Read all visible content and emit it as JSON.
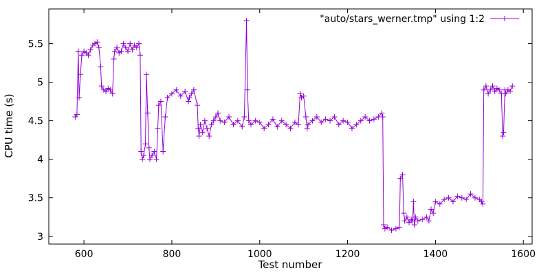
{
  "chart_data": {
    "type": "line",
    "title": "",
    "xlabel": "Test number",
    "ylabel": "CPU time (s)",
    "xlim": [
      520,
      1620
    ],
    "ylim": [
      2.9,
      5.95
    ],
    "x_ticks": [
      600,
      800,
      1000,
      1200,
      1400,
      1600
    ],
    "y_ticks": [
      3,
      3.5,
      4,
      4.5,
      5,
      5.5
    ],
    "x_tick_labels": [
      "600",
      "800",
      "1000",
      "1200",
      "1400",
      "1600"
    ],
    "y_tick_labels": [
      "3",
      "3.5",
      "4",
      "4.5",
      "5",
      "5.5"
    ],
    "grid": false,
    "legend_position": "top-right",
    "series": [
      {
        "name": "\"auto/stars_werner.tmp\" using 1:2",
        "color": "#9400d3",
        "marker": "plus",
        "x": [
          580,
          584,
          587,
          589,
          592,
          595,
          600,
          605,
          610,
          615,
          620,
          625,
          630,
          634,
          638,
          640,
          645,
          650,
          655,
          660,
          665,
          668,
          670,
          675,
          680,
          685,
          690,
          695,
          700,
          705,
          710,
          715,
          720,
          725,
          728,
          730,
          733,
          736,
          740,
          742,
          745,
          748,
          750,
          755,
          760,
          765,
          768,
          770,
          775,
          780,
          785,
          790,
          800,
          810,
          820,
          830,
          838,
          840,
          845,
          850,
          858,
          860,
          862,
          865,
          870,
          875,
          880,
          885,
          890,
          895,
          900,
          905,
          910,
          920,
          930,
          940,
          950,
          960,
          965,
          970,
          972,
          975,
          980,
          990,
          1000,
          1010,
          1020,
          1030,
          1040,
          1050,
          1060,
          1070,
          1080,
          1088,
          1092,
          1095,
          1100,
          1105,
          1108,
          1110,
          1120,
          1130,
          1140,
          1150,
          1160,
          1170,
          1180,
          1190,
          1200,
          1210,
          1220,
          1230,
          1240,
          1250,
          1260,
          1270,
          1278,
          1280,
          1282,
          1285,
          1290,
          1300,
          1310,
          1318,
          1320,
          1325,
          1328,
          1330,
          1335,
          1340,
          1345,
          1348,
          1350,
          1352,
          1355,
          1360,
          1370,
          1380,
          1385,
          1390,
          1395,
          1400,
          1410,
          1420,
          1430,
          1440,
          1450,
          1460,
          1470,
          1480,
          1490,
          1500,
          1505,
          1508,
          1510,
          1515,
          1520,
          1525,
          1530,
          1535,
          1540,
          1545,
          1550,
          1553,
          1555,
          1558,
          1560,
          1565,
          1570,
          1575
        ],
        "y": [
          4.55,
          4.58,
          5.4,
          4.8,
          5.1,
          5.35,
          5.4,
          5.38,
          5.35,
          5.42,
          5.48,
          5.5,
          5.52,
          5.45,
          5.2,
          4.95,
          4.9,
          4.88,
          4.92,
          4.9,
          4.85,
          5.3,
          5.4,
          5.45,
          5.38,
          5.4,
          5.5,
          5.45,
          5.4,
          5.5,
          5.42,
          5.48,
          5.45,
          5.5,
          5.35,
          4.1,
          4.0,
          4.05,
          4.2,
          5.1,
          4.6,
          4.15,
          4.0,
          4.05,
          4.1,
          4.0,
          4.4,
          4.7,
          4.75,
          4.1,
          4.55,
          4.8,
          4.85,
          4.9,
          4.82,
          4.88,
          4.75,
          4.8,
          4.85,
          4.9,
          4.7,
          4.4,
          4.3,
          4.45,
          4.35,
          4.5,
          4.4,
          4.3,
          4.45,
          4.5,
          4.55,
          4.6,
          4.5,
          4.48,
          4.55,
          4.45,
          4.5,
          4.42,
          4.55,
          5.8,
          4.9,
          4.5,
          4.45,
          4.5,
          4.48,
          4.4,
          4.45,
          4.52,
          4.42,
          4.5,
          4.45,
          4.4,
          4.48,
          4.45,
          4.85,
          4.8,
          4.82,
          4.55,
          4.4,
          4.45,
          4.5,
          4.55,
          4.48,
          4.52,
          4.5,
          4.55,
          4.45,
          4.5,
          4.48,
          4.4,
          4.45,
          4.5,
          4.55,
          4.5,
          4.52,
          4.55,
          4.6,
          4.55,
          3.15,
          3.1,
          3.12,
          3.08,
          3.1,
          3.12,
          3.75,
          3.8,
          3.3,
          3.2,
          3.25,
          3.18,
          3.22,
          3.2,
          3.45,
          3.15,
          3.25,
          3.2,
          3.22,
          3.25,
          3.2,
          3.35,
          3.3,
          3.45,
          3.42,
          3.48,
          3.5,
          3.45,
          3.52,
          3.5,
          3.48,
          3.55,
          3.5,
          3.48,
          3.45,
          3.42,
          4.9,
          4.95,
          4.85,
          4.9,
          4.95,
          4.88,
          4.92,
          4.9,
          4.85,
          4.3,
          4.35,
          4.9,
          4.85,
          4.9,
          4.88,
          4.95
        ]
      }
    ]
  }
}
